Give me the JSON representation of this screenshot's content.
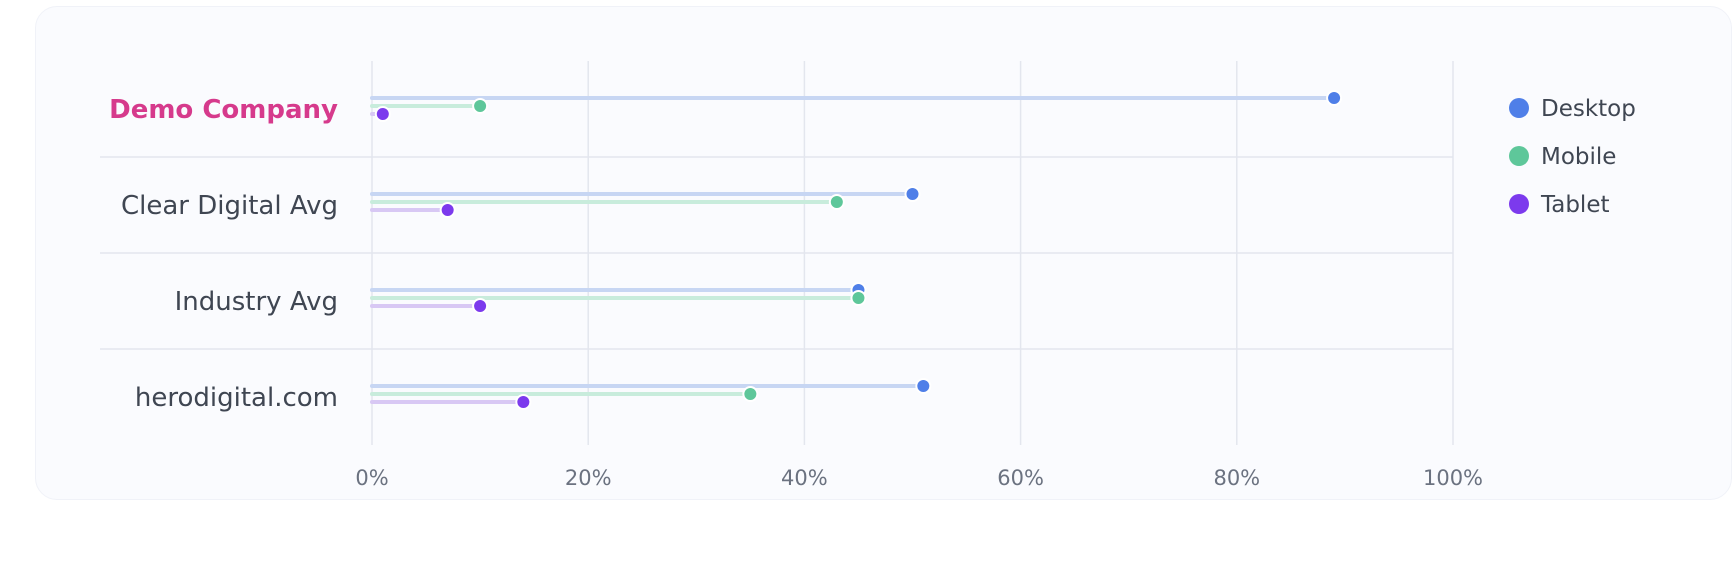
{
  "chart_data": {
    "type": "dot-bar",
    "categories": [
      "Demo Company",
      "Clear Digital Avg",
      "Industry Avg",
      "herodigital.com"
    ],
    "highlight_category": "Demo Company",
    "x_ticks": [
      "0%",
      "20%",
      "40%",
      "60%",
      "80%",
      "100%"
    ],
    "xlim": [
      0,
      100
    ],
    "grid": true,
    "legend_position": "right",
    "series": [
      {
        "name": "Desktop",
        "color": "#4f7fe8",
        "track_color": "#c7d6f3",
        "values": [
          89,
          50,
          45,
          51
        ]
      },
      {
        "name": "Mobile",
        "color": "#5ec79a",
        "track_color": "#c8ecdc",
        "values": [
          10,
          43,
          45,
          35
        ]
      },
      {
        "name": "Tablet",
        "color": "#7c3aed",
        "track_color": "#d8c8f4",
        "values": [
          1,
          7,
          10,
          14
        ]
      }
    ],
    "highlight_color": "#d63a8c"
  }
}
